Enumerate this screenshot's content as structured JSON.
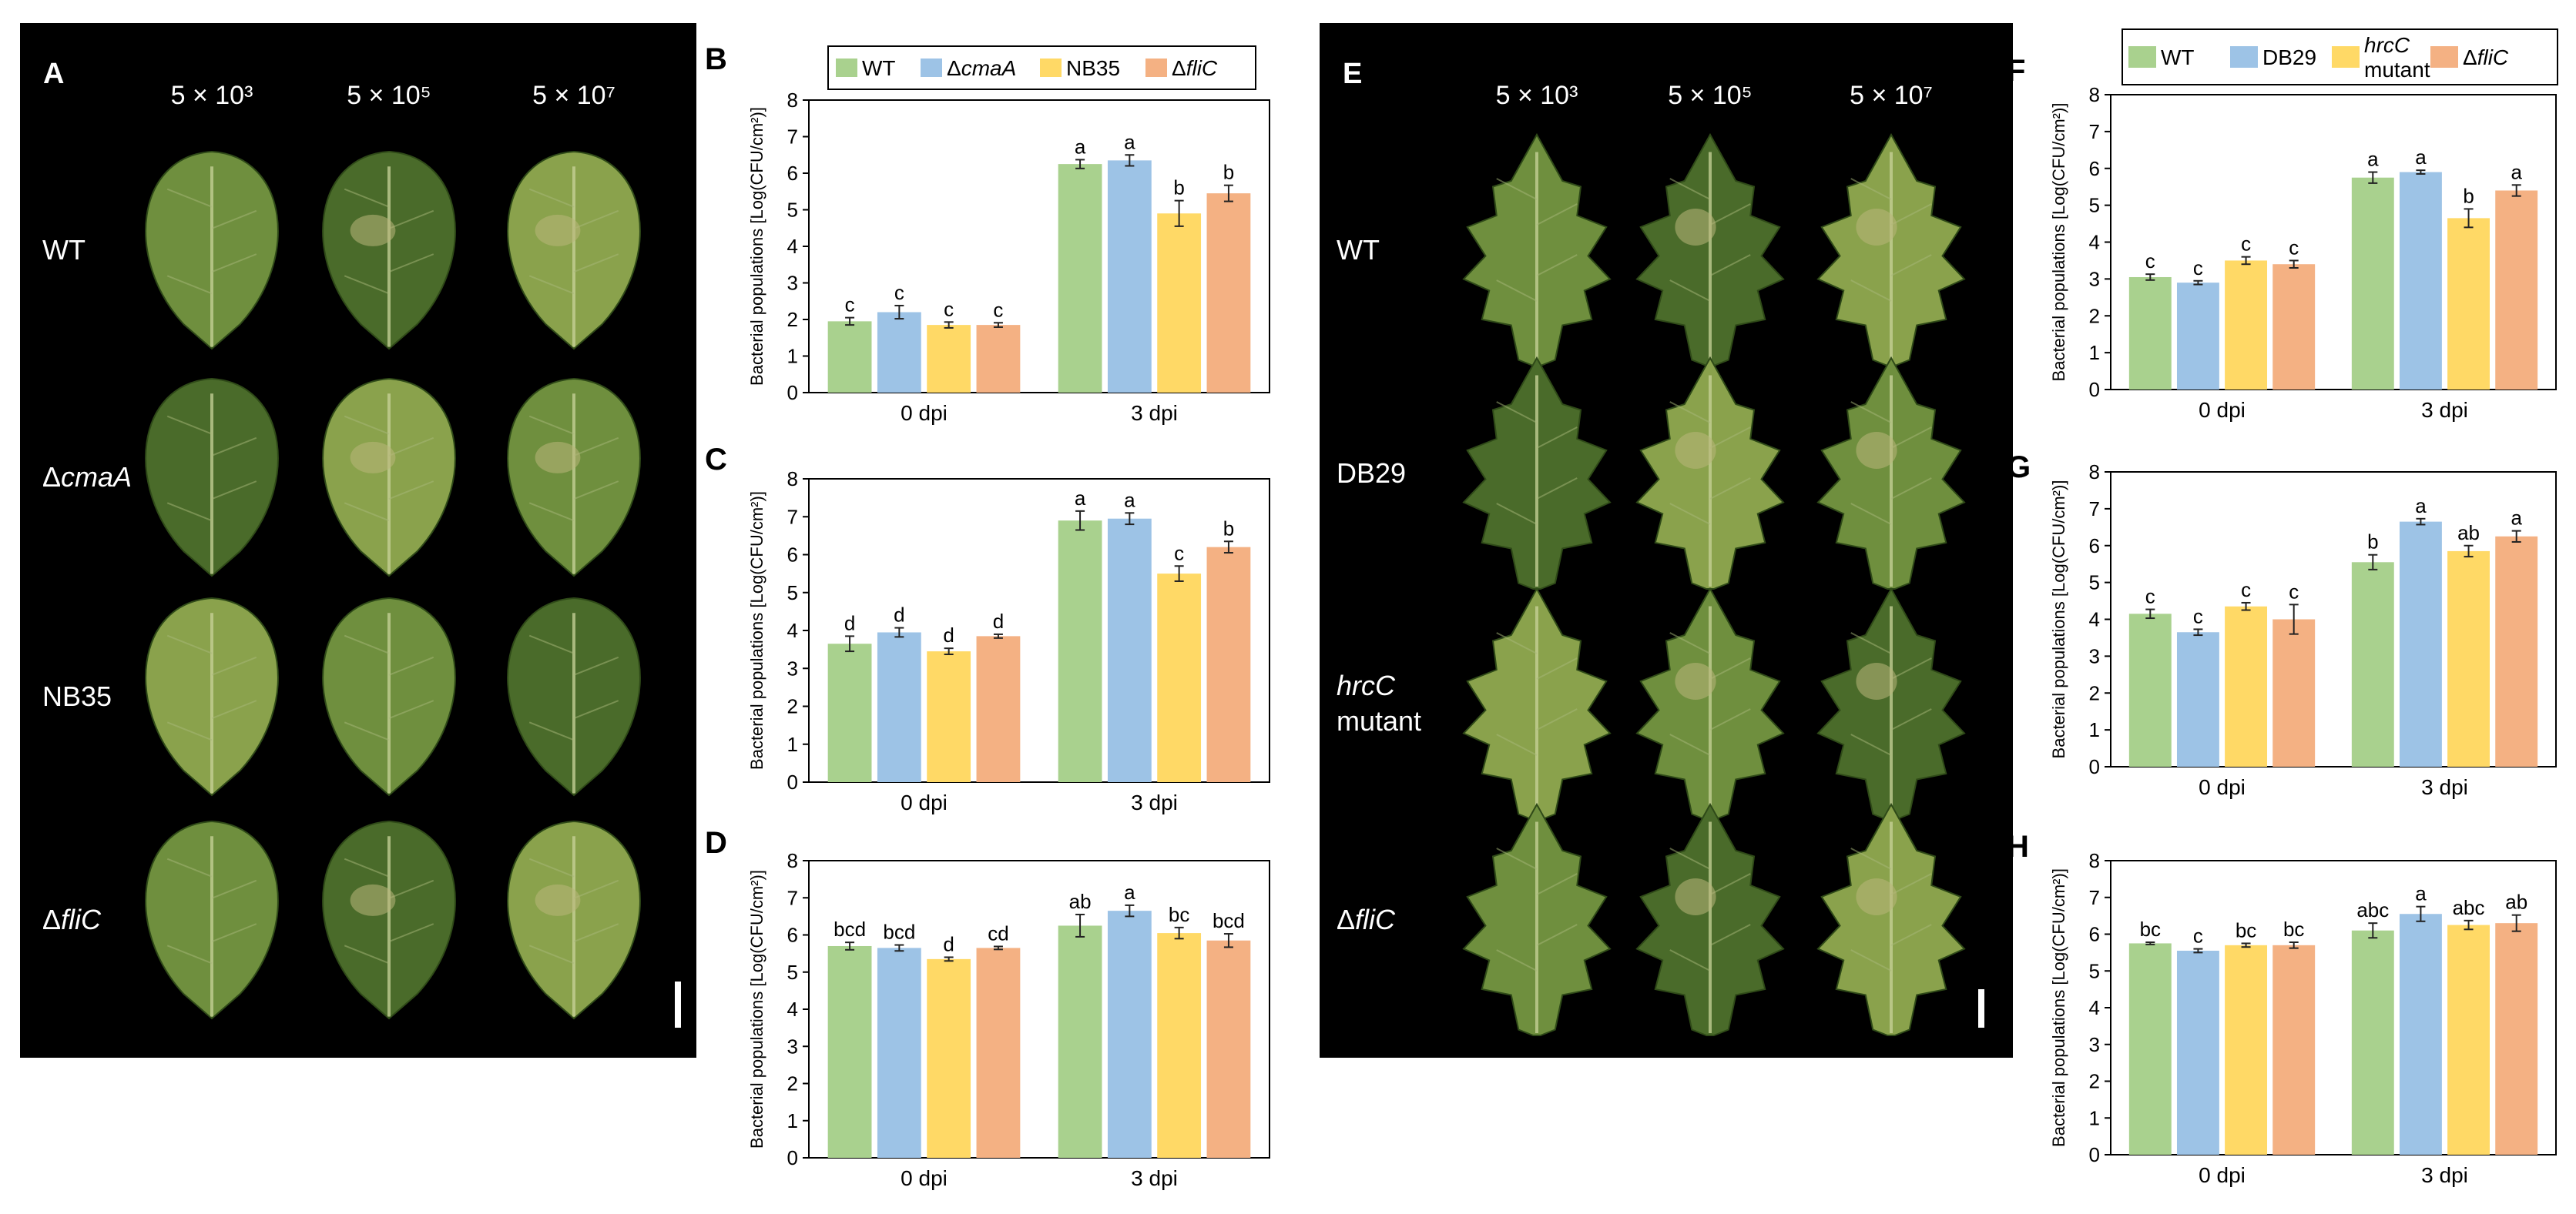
{
  "colors": {
    "photo_bg": "#000000",
    "leaf_dark": "#4a6b2a",
    "leaf_mid": "#6f8f3e",
    "leaf_light": "#8aa24c",
    "lesion": "#b9b77a",
    "series": [
      "#a9d18e",
      "#9dc3e6",
      "#ffd966",
      "#f4b183"
    ]
  },
  "photos": [
    {
      "panel": "A",
      "columns": [
        "5 × 10³",
        "5 × 10⁵",
        "5 × 10⁷"
      ],
      "rows": [
        {
          "label": "WT",
          "italic": false
        },
        {
          "label": "ΔcmaA",
          "italic": true
        },
        {
          "label": "NB35",
          "italic": false
        },
        {
          "label": "ΔfliC",
          "italic": true
        }
      ]
    },
    {
      "panel": "E",
      "columns": [
        "5 × 10³",
        "5 × 10⁵",
        "5 × 10⁷"
      ],
      "rows": [
        {
          "label": "WT",
          "italic": false
        },
        {
          "label": "DB29",
          "italic": false
        },
        {
          "label": "hrcC",
          "label2": "mutant",
          "italic": true
        },
        {
          "label": "ΔfliC",
          "italic": true
        }
      ]
    }
  ],
  "legends": [
    {
      "for": "B",
      "entries": [
        "WT",
        "ΔcmaA",
        "NB35",
        "ΔfliC"
      ]
    },
    {
      "for": "F",
      "entries": [
        "WT",
        "DB29",
        "hrcC mutant",
        "ΔfliC"
      ]
    }
  ],
  "chart_data": [
    {
      "panel": "B",
      "type": "bar",
      "ylabel": "Bacterial populations [Log(CFU/cm²)]",
      "ylim": [
        0,
        8
      ],
      "yticks": [
        0,
        1,
        2,
        3,
        4,
        5,
        6,
        7,
        8
      ],
      "categories": [
        "0 dpi",
        "3 dpi"
      ],
      "series": [
        {
          "name": "WT",
          "values": [
            1.95,
            6.25
          ],
          "errors": [
            0.1,
            0.12
          ],
          "letters": [
            "c",
            "a"
          ]
        },
        {
          "name": "ΔcmaA",
          "values": [
            2.2,
            6.35
          ],
          "errors": [
            0.18,
            0.15
          ],
          "letters": [
            "c",
            "a"
          ]
        },
        {
          "name": "NB35",
          "values": [
            1.85,
            4.9
          ],
          "errors": [
            0.08,
            0.35
          ],
          "letters": [
            "c",
            "b"
          ]
        },
        {
          "name": "ΔfliC",
          "values": [
            1.85,
            5.45
          ],
          "errors": [
            0.06,
            0.22
          ],
          "letters": [
            "c",
            "b"
          ]
        }
      ]
    },
    {
      "panel": "C",
      "type": "bar",
      "ylabel": "Bacterial populations [Log(CFU/cm²)]",
      "ylim": [
        0,
        8
      ],
      "yticks": [
        0,
        1,
        2,
        3,
        4,
        5,
        6,
        7,
        8
      ],
      "categories": [
        "0 dpi",
        "3 dpi"
      ],
      "series": [
        {
          "name": "WT",
          "values": [
            3.65,
            6.9
          ],
          "errors": [
            0.2,
            0.25
          ],
          "letters": [
            "d",
            "a"
          ]
        },
        {
          "name": "ΔcmaA",
          "values": [
            3.95,
            6.95
          ],
          "errors": [
            0.12,
            0.15
          ],
          "letters": [
            "d",
            "a"
          ]
        },
        {
          "name": "NB35",
          "values": [
            3.45,
            5.5
          ],
          "errors": [
            0.08,
            0.2
          ],
          "letters": [
            "d",
            "c"
          ]
        },
        {
          "name": "ΔfliC",
          "values": [
            3.85,
            6.2
          ],
          "errors": [
            0.05,
            0.15
          ],
          "letters": [
            "d",
            "b"
          ]
        }
      ]
    },
    {
      "panel": "D",
      "type": "bar",
      "ylabel": "Bacterial populations [Log(CFU/cm²)]",
      "ylim": [
        0,
        8
      ],
      "yticks": [
        0,
        1,
        2,
        3,
        4,
        5,
        6,
        7,
        8
      ],
      "categories": [
        "0 dpi",
        "3 dpi"
      ],
      "series": [
        {
          "name": "WT",
          "values": [
            5.7,
            6.25
          ],
          "errors": [
            0.1,
            0.3
          ],
          "letters": [
            "bcd",
            "ab"
          ]
        },
        {
          "name": "ΔcmaA",
          "values": [
            5.65,
            6.65
          ],
          "errors": [
            0.08,
            0.15
          ],
          "letters": [
            "bcd",
            "a"
          ]
        },
        {
          "name": "NB35",
          "values": [
            5.35,
            6.05
          ],
          "errors": [
            0.05,
            0.15
          ],
          "letters": [
            "d",
            "bc"
          ]
        },
        {
          "name": "ΔfliC",
          "values": [
            5.65,
            5.85
          ],
          "errors": [
            0.04,
            0.18
          ],
          "letters": [
            "cd",
            "bcd"
          ]
        }
      ]
    },
    {
      "panel": "F",
      "type": "bar",
      "ylabel": "Bacterial populations [Log(CFU/cm²)]",
      "ylim": [
        0,
        8
      ],
      "yticks": [
        0,
        1,
        2,
        3,
        4,
        5,
        6,
        7,
        8
      ],
      "categories": [
        "0 dpi",
        "3 dpi"
      ],
      "series": [
        {
          "name": "WT",
          "values": [
            3.05,
            5.75
          ],
          "errors": [
            0.08,
            0.15
          ],
          "letters": [
            "c",
            "a"
          ]
        },
        {
          "name": "DB29",
          "values": [
            2.9,
            5.9
          ],
          "errors": [
            0.05,
            0.05
          ],
          "letters": [
            "c",
            "a"
          ]
        },
        {
          "name": "hrcC mutant",
          "values": [
            3.5,
            4.65
          ],
          "errors": [
            0.1,
            0.25
          ],
          "letters": [
            "c",
            "b"
          ]
        },
        {
          "name": "ΔfliC",
          "values": [
            3.4,
            5.4
          ],
          "errors": [
            0.1,
            0.15
          ],
          "letters": [
            "c",
            "a"
          ]
        }
      ]
    },
    {
      "panel": "G",
      "type": "bar",
      "ylabel": "Bacterial populations [Log(CFU/cm²)]",
      "ylim": [
        0,
        8
      ],
      "yticks": [
        0,
        1,
        2,
        3,
        4,
        5,
        6,
        7,
        8
      ],
      "categories": [
        "0 dpi",
        "3 dpi"
      ],
      "series": [
        {
          "name": "WT",
          "values": [
            4.15,
            5.55
          ],
          "errors": [
            0.12,
            0.2
          ],
          "letters": [
            "c",
            "b"
          ]
        },
        {
          "name": "DB29",
          "values": [
            3.65,
            6.65
          ],
          "errors": [
            0.08,
            0.08
          ],
          "letters": [
            "c",
            "a"
          ]
        },
        {
          "name": "hrcC mutant",
          "values": [
            4.35,
            5.85
          ],
          "errors": [
            0.1,
            0.15
          ],
          "letters": [
            "c",
            "ab"
          ]
        },
        {
          "name": "ΔfliC",
          "values": [
            4.0,
            6.25
          ],
          "errors": [
            0.4,
            0.15
          ],
          "letters": [
            "c",
            "a"
          ]
        }
      ]
    },
    {
      "panel": "H",
      "type": "bar",
      "ylabel": "Bacterial populations [Log(CFU/cm²)]",
      "ylim": [
        0,
        8
      ],
      "yticks": [
        0,
        1,
        2,
        3,
        4,
        5,
        6,
        7,
        8
      ],
      "categories": [
        "0 dpi",
        "3 dpi"
      ],
      "series": [
        {
          "name": "WT",
          "values": [
            5.75,
            6.1
          ],
          "errors": [
            0.03,
            0.2
          ],
          "letters": [
            "bc",
            "abc"
          ]
        },
        {
          "name": "DB29",
          "values": [
            5.55,
            6.55
          ],
          "errors": [
            0.05,
            0.2
          ],
          "letters": [
            "c",
            "a"
          ]
        },
        {
          "name": "hrcC mutant",
          "values": [
            5.7,
            6.25
          ],
          "errors": [
            0.05,
            0.12
          ],
          "letters": [
            "bc",
            "abc"
          ]
        },
        {
          "name": "ΔfliC",
          "values": [
            5.7,
            6.3
          ],
          "errors": [
            0.08,
            0.22
          ],
          "letters": [
            "bc",
            "ab"
          ]
        }
      ]
    }
  ]
}
